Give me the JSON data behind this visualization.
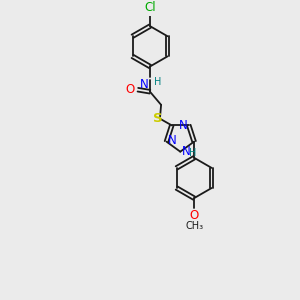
{
  "background_color": "#ebebeb",
  "bond_color": "#1a1a1a",
  "cl_color": "#00aa00",
  "n_color": "#0000ff",
  "o_color": "#ff0000",
  "s_color": "#cccc00",
  "h_color": "#008080",
  "font_size": 8.5,
  "small_font_size": 7.0,
  "lw": 1.3,
  "xlim": [
    0,
    10
  ],
  "ylim": [
    0,
    14
  ]
}
